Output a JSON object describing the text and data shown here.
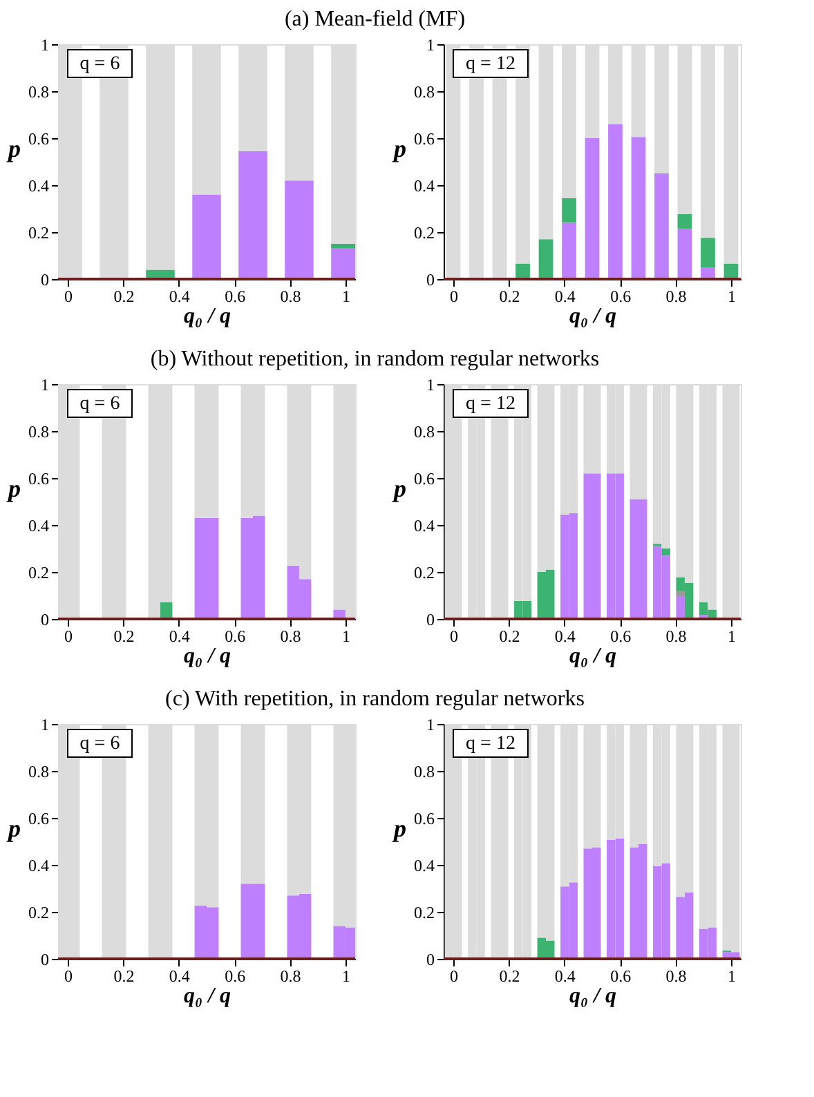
{
  "chart_data": [
    {
      "type": "bar",
      "stacked": true,
      "title": "(a) Mean-field (MF)",
      "xlabel": "q₀ / q",
      "ylabel": "p",
      "annotations": [
        "q = 6"
      ],
      "x": [
        0,
        0.1667,
        0.3333,
        0.5,
        0.6667,
        0.8333,
        1
      ],
      "series": [
        {
          "color": "#bf80ff",
          "values": [
            0,
            0,
            0,
            0.36,
            0.545,
            0.42,
            0.13
          ]
        },
        {
          "color": "#3cb371",
          "values": [
            0,
            0,
            0.04,
            0,
            0,
            0,
            0.02
          ]
        },
        {
          "color": "#dcdcdc",
          "values": [
            1,
            1,
            0.96,
            0.64,
            0.455,
            0.58,
            0.85
          ]
        }
      ],
      "xlim": [
        -0.035,
        1.035
      ],
      "ylim": [
        0,
        1
      ],
      "xticks": [
        0,
        0.2,
        0.4,
        0.6,
        0.8,
        1
      ],
      "yticks": [
        0,
        0.2,
        0.4,
        0.6,
        0.8,
        1
      ],
      "ref_lines": [
        {
          "axis": "y",
          "value": 0,
          "color": "#6b1e1e"
        }
      ],
      "grid": false
    },
    {
      "type": "bar",
      "stacked": true,
      "xlabel": "q₀ / q",
      "ylabel": "p",
      "annotations": [
        "q = 12"
      ],
      "x": [
        0,
        0.0833,
        0.1667,
        0.25,
        0.3333,
        0.4167,
        0.5,
        0.5833,
        0.6667,
        0.75,
        0.8333,
        0.9167,
        1
      ],
      "series": [
        {
          "color": "#bf80ff",
          "values": [
            0,
            0,
            0,
            0,
            0,
            0.24,
            0.6,
            0.66,
            0.605,
            0.45,
            0.215,
            0.05,
            0
          ]
        },
        {
          "color": "#3cb371",
          "values": [
            0,
            0,
            0,
            0.066,
            0.17,
            0.105,
            0,
            0,
            0,
            0,
            0.062,
            0.126,
            0.066
          ]
        },
        {
          "color": "#dcdcdc",
          "values": [
            1,
            1,
            1,
            0.934,
            0.83,
            0.655,
            0.4,
            0.34,
            0.395,
            0.55,
            0.723,
            0.824,
            0.934
          ]
        }
      ],
      "xlim": [
        -0.035,
        1.035
      ],
      "ylim": [
        0,
        1
      ],
      "xticks": [
        0,
        0.2,
        0.4,
        0.6,
        0.8,
        1
      ],
      "yticks": [
        0,
        0.2,
        0.4,
        0.6,
        0.8,
        1
      ],
      "ref_lines": [
        {
          "axis": "y",
          "value": 0,
          "color": "#6b1e1e"
        }
      ],
      "grid": false
    },
    {
      "type": "bar",
      "stacked": true,
      "title": "(b) Without repetition, in random regular networks",
      "xlabel": "q₀ / q",
      "ylabel": "p",
      "annotations": [
        "q = 6"
      ],
      "x": [
        -0.0217,
        0.0217,
        0.145,
        0.1884,
        0.3116,
        0.355,
        0.4783,
        0.5217,
        0.645,
        0.6884,
        0.8116,
        0.855,
        0.9783,
        1.0217
      ],
      "series": [
        {
          "color": "#bf80ff",
          "values": [
            0,
            0,
            0,
            0,
            0,
            0,
            0.43,
            0.43,
            0.43,
            0.44,
            0.227,
            0.17,
            0.04,
            0
          ]
        },
        {
          "color": "#3cb371",
          "values": [
            0,
            0,
            0,
            0,
            0,
            0.072,
            0,
            0,
            0,
            0,
            0,
            0,
            0,
            0
          ]
        },
        {
          "color": "#dcdcdc",
          "values": [
            1,
            1,
            1,
            1,
            1,
            0.928,
            0.57,
            0.57,
            0.57,
            0.56,
            0.773,
            0.83,
            0.96,
            1
          ]
        }
      ],
      "xlim": [
        -0.035,
        1.035
      ],
      "ylim": [
        0,
        1
      ],
      "xticks": [
        0,
        0.2,
        0.4,
        0.6,
        0.8,
        1
      ],
      "yticks": [
        0,
        0.2,
        0.4,
        0.6,
        0.8,
        1
      ],
      "ref_lines": [
        {
          "axis": "y",
          "value": 0,
          "color": "#6b1e1e"
        }
      ],
      "grid": false
    },
    {
      "type": "bar",
      "stacked": true,
      "xlabel": "q₀ / q",
      "ylabel": "p",
      "annotations": [
        "q = 12"
      ],
      "x": [
        -0.0155,
        0.0155,
        0.0678,
        0.0988,
        0.1512,
        0.1822,
        0.2345,
        0.2655,
        0.3178,
        0.3488,
        0.4012,
        0.4322,
        0.4845,
        0.5155,
        0.5678,
        0.5988,
        0.6512,
        0.6822,
        0.7345,
        0.7655,
        0.8178,
        0.8488,
        0.9012,
        0.9322,
        0.9845,
        1.0155
      ],
      "series": [
        {
          "color": "#bf80ff",
          "values": [
            0,
            0,
            0,
            0,
            0,
            0,
            0,
            0,
            0,
            0,
            0.445,
            0.45,
            0.62,
            0.62,
            0.62,
            0.62,
            0.51,
            0.51,
            0.31,
            0.27,
            0.097,
            0,
            0.017,
            0,
            0,
            0
          ]
        },
        {
          "color": "#999999",
          "values": [
            0,
            0,
            0,
            0,
            0,
            0,
            0,
            0,
            0,
            0,
            0,
            0,
            0,
            0,
            0,
            0,
            0,
            0,
            0,
            0,
            0.021,
            0,
            0,
            0,
            0,
            0
          ]
        },
        {
          "color": "#3cb371",
          "values": [
            0,
            0,
            0,
            0,
            0,
            0,
            0.077,
            0.077,
            0.2,
            0.21,
            0,
            0,
            0,
            0,
            0,
            0,
            0,
            0,
            0.01,
            0.03,
            0.06,
            0.153,
            0.055,
            0.04,
            0,
            0
          ]
        },
        {
          "color": "#dcdcdc",
          "values": [
            1,
            1,
            1,
            1,
            1,
            1,
            0.923,
            0.923,
            0.8,
            0.79,
            0.555,
            0.55,
            0.38,
            0.38,
            0.38,
            0.38,
            0.49,
            0.49,
            0.68,
            0.7,
            0.822,
            0.847,
            0.928,
            0.96,
            1,
            1
          ]
        }
      ],
      "xlim": [
        -0.035,
        1.035
      ],
      "ylim": [
        0,
        1
      ],
      "xticks": [
        0,
        0.2,
        0.4,
        0.6,
        0.8,
        1
      ],
      "yticks": [
        0,
        0.2,
        0.4,
        0.6,
        0.8,
        1
      ],
      "ref_lines": [
        {
          "axis": "y",
          "value": 0,
          "color": "#6b1e1e"
        }
      ],
      "grid": false
    },
    {
      "type": "bar",
      "stacked": true,
      "title": "(c) With repetition, in random regular networks",
      "xlabel": "q₀ / q",
      "ylabel": "p",
      "annotations": [
        "q = 6"
      ],
      "x": [
        -0.0217,
        0.0217,
        0.145,
        0.1884,
        0.3116,
        0.355,
        0.4783,
        0.5217,
        0.645,
        0.6884,
        0.8116,
        0.855,
        0.9783,
        1.0217
      ],
      "series": [
        {
          "color": "#bf80ff",
          "values": [
            0,
            0,
            0,
            0,
            0,
            0,
            0.227,
            0.22,
            0.32,
            0.32,
            0.27,
            0.277,
            0.14,
            0.134
          ]
        },
        {
          "color": "#dcdcdc",
          "values": [
            1,
            1,
            1,
            1,
            1,
            1,
            0.773,
            0.78,
            0.68,
            0.68,
            0.73,
            0.723,
            0.86,
            0.866
          ]
        }
      ],
      "xlim": [
        -0.035,
        1.035
      ],
      "ylim": [
        0,
        1
      ],
      "xticks": [
        0,
        0.2,
        0.4,
        0.6,
        0.8,
        1
      ],
      "yticks": [
        0,
        0.2,
        0.4,
        0.6,
        0.8,
        1
      ],
      "ref_lines": [
        {
          "axis": "y",
          "value": 0,
          "color": "#6b1e1e"
        }
      ],
      "grid": false
    },
    {
      "type": "bar",
      "stacked": true,
      "xlabel": "q₀ / q",
      "ylabel": "p",
      "annotations": [
        "q = 12"
      ],
      "x": [
        -0.0155,
        0.0155,
        0.0678,
        0.0988,
        0.1512,
        0.1822,
        0.2345,
        0.2655,
        0.3178,
        0.3488,
        0.4012,
        0.4322,
        0.4845,
        0.5155,
        0.5678,
        0.5988,
        0.6512,
        0.6822,
        0.7345,
        0.7655,
        0.8178,
        0.8488,
        0.9012,
        0.9322,
        0.9845,
        1.0155
      ],
      "series": [
        {
          "color": "#bf80ff",
          "values": [
            0,
            0,
            0,
            0,
            0,
            0,
            0,
            0,
            0,
            0,
            0.308,
            0.326,
            0.47,
            0.475,
            0.506,
            0.512,
            0.475,
            0.488,
            0.395,
            0.407,
            0.264,
            0.283,
            0.128,
            0.134,
            0.029,
            0.029
          ]
        },
        {
          "color": "#3cb371",
          "values": [
            0,
            0,
            0,
            0,
            0,
            0,
            0,
            0,
            0.09,
            0.078,
            0,
            0,
            0,
            0,
            0,
            0,
            0,
            0,
            0,
            0,
            0,
            0,
            0,
            0,
            0.006,
            0
          ]
        },
        {
          "color": "#dcdcdc",
          "values": [
            1,
            1,
            1,
            1,
            1,
            1,
            1,
            1,
            0.91,
            0.922,
            0.692,
            0.674,
            0.53,
            0.525,
            0.494,
            0.488,
            0.525,
            0.512,
            0.605,
            0.593,
            0.736,
            0.717,
            0.872,
            0.866,
            0.965,
            0.971
          ]
        }
      ],
      "xlim": [
        -0.035,
        1.035
      ],
      "ylim": [
        0,
        1
      ],
      "xticks": [
        0,
        0.2,
        0.4,
        0.6,
        0.8,
        1
      ],
      "yticks": [
        0,
        0.2,
        0.4,
        0.6,
        0.8,
        1
      ],
      "ref_lines": [
        {
          "axis": "y",
          "value": 0,
          "color": "#6b1e1e"
        }
      ],
      "grid": false
    }
  ]
}
